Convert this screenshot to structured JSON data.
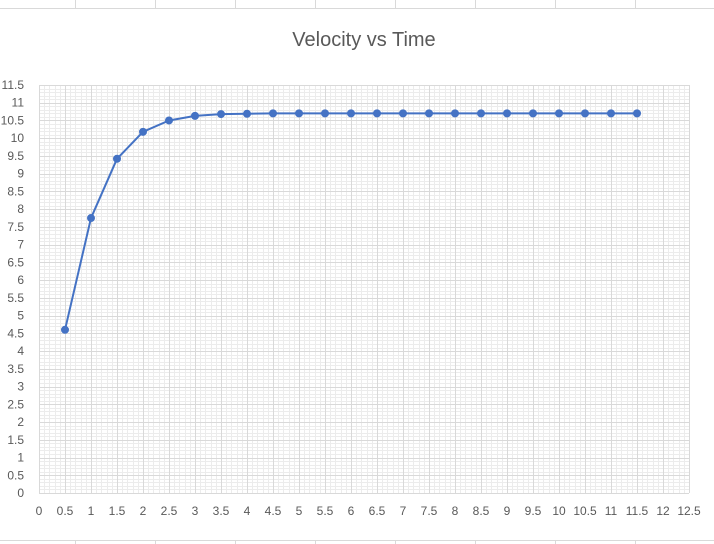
{
  "chart_data": {
    "type": "line",
    "title": "Velocity vs Time",
    "xlabel": "",
    "ylabel": "",
    "xlim": [
      0,
      12.5
    ],
    "ylim": [
      0,
      11.5
    ],
    "x_ticks": [
      "0",
      "0.5",
      "1",
      "1.5",
      "2",
      "2.5",
      "3",
      "3.5",
      "4",
      "4.5",
      "5",
      "5.5",
      "6",
      "6.5",
      "7",
      "7.5",
      "8",
      "8.5",
      "9",
      "9.5",
      "10",
      "10.5",
      "11",
      "11.5",
      "12",
      "12.5"
    ],
    "y_ticks": [
      "0",
      "0.5",
      "1",
      "1.5",
      "2",
      "2.5",
      "3",
      "3.5",
      "4",
      "4.5",
      "5",
      "5.5",
      "6",
      "6.5",
      "7",
      "7.5",
      "8",
      "8.5",
      "9",
      "9.5",
      "10",
      "10.5",
      "11",
      "11.5"
    ],
    "grid": true,
    "legend": "none",
    "series": [
      {
        "color": "#4472c4",
        "marker": "circle",
        "x": [
          0.5,
          1,
          1.5,
          2,
          2.5,
          3,
          3.5,
          4,
          4.5,
          5,
          5.5,
          6,
          6.5,
          7,
          7.5,
          8,
          8.5,
          9,
          9.5,
          10,
          10.5,
          11,
          11.5
        ],
        "y": [
          4.6,
          7.75,
          9.42,
          10.18,
          10.5,
          10.63,
          10.68,
          10.69,
          10.7,
          10.7,
          10.7,
          10.7,
          10.7,
          10.7,
          10.7,
          10.7,
          10.7,
          10.7,
          10.7,
          10.7,
          10.7,
          10.7,
          10.7
        ]
      }
    ]
  }
}
